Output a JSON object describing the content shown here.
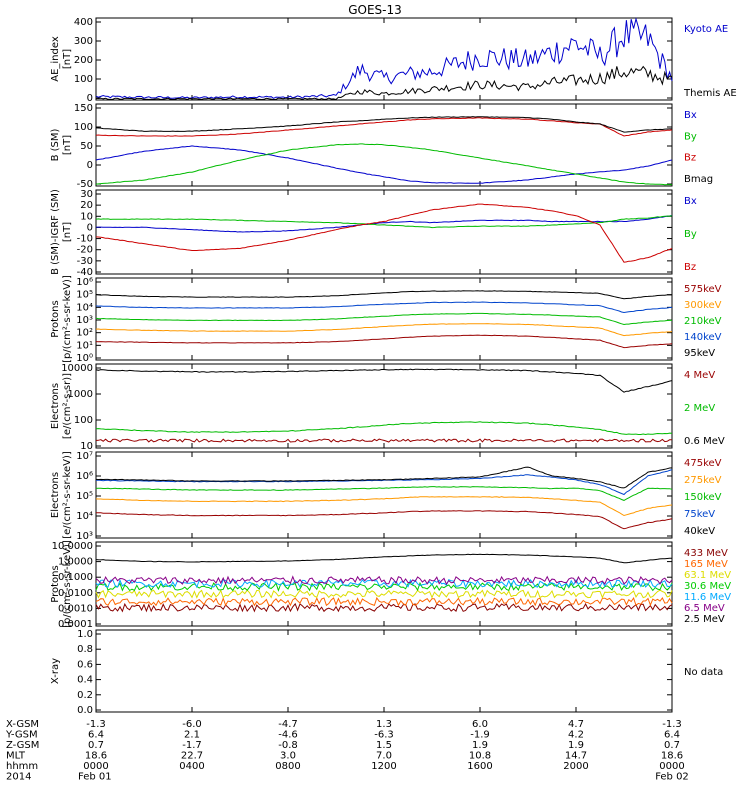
{
  "title": "GOES-13",
  "panels": [
    {
      "id": "ae",
      "ylabel": [
        "AE_index",
        "[nT]"
      ],
      "ticks": [
        "0",
        "100",
        "200",
        "300",
        "400"
      ],
      "legend": [
        {
          "label": "Kyoto AE",
          "color": "#0000cc"
        },
        {
          "label": "Themis AE",
          "color": "#000000"
        }
      ]
    },
    {
      "id": "bsm",
      "ylabel": [
        "B (SM)",
        "[nT]"
      ],
      "ticks": [
        "-50",
        "0",
        "50",
        "100",
        "150"
      ],
      "legend": [
        {
          "label": "Bx",
          "color": "#0000cc"
        },
        {
          "label": "By",
          "color": "#00bb00"
        },
        {
          "label": "Bz",
          "color": "#cc0000"
        },
        {
          "label": "Bmag",
          "color": "#000000"
        }
      ]
    },
    {
      "id": "bigrf",
      "ylabel": [
        "B (SM)-IGRF (SM)",
        "[nT]"
      ],
      "ticks": [
        "-40",
        "-30",
        "-20",
        "-10",
        "0",
        "10",
        "20",
        "30"
      ],
      "legend": [
        {
          "label": "Bx",
          "color": "#0000cc"
        },
        {
          "label": "By",
          "color": "#00bb00"
        },
        {
          "label": "Bz",
          "color": "#cc0000"
        }
      ]
    },
    {
      "id": "protons-kev",
      "ylabel": [
        "Protons",
        "[p/(cm²-s-sr-keV)]"
      ],
      "ticks": [
        "10⁰",
        "10¹",
        "10²",
        "10³",
        "10⁴",
        "10⁵",
        "10⁶"
      ],
      "legend": [
        {
          "label": "575keV",
          "color": "#990000"
        },
        {
          "label": "300keV",
          "color": "#ff9900"
        },
        {
          "label": "210keV",
          "color": "#00bb00"
        },
        {
          "label": "140keV",
          "color": "#0044cc"
        },
        {
          "label": "95keV",
          "color": "#000000"
        }
      ]
    },
    {
      "id": "electrons-mev",
      "ylabel": [
        "Electrons",
        "[e/(cm²-s-sr)]"
      ],
      "ticks": [
        "10",
        "100",
        "1000",
        "10000"
      ],
      "legend": [
        {
          "label": "4 MeV",
          "color": "#990000"
        },
        {
          "label": "2 MeV",
          "color": "#00bb00"
        },
        {
          "label": "0.6 MeV",
          "color": "#000000"
        }
      ]
    },
    {
      "id": "electrons-kev",
      "ylabel": [
        "Electrons",
        "[e/(cm²-s-sr-keV)]"
      ],
      "ticks": [
        "10³",
        "10⁴",
        "10⁵",
        "10⁶",
        "10⁷"
      ],
      "legend": [
        {
          "label": "475keV",
          "color": "#990000"
        },
        {
          "label": "275keV",
          "color": "#ff9900"
        },
        {
          "label": "150keV",
          "color": "#00bb00"
        },
        {
          "label": "75keV",
          "color": "#0044cc"
        },
        {
          "label": "40keV",
          "color": "#000000"
        }
      ]
    },
    {
      "id": "protons-mev",
      "ylabel": [
        "Protons",
        "[p/(cm²-s-sr-keV)]"
      ],
      "ticks": [
        "0.0001",
        "0.0010",
        "0.0100",
        "0.1000",
        "1.0000",
        "10.0000"
      ],
      "legend": [
        {
          "label": "433 MeV",
          "color": "#880000"
        },
        {
          "label": "165 MeV",
          "color": "#ff6600"
        },
        {
          "label": "63.1 MeV",
          "color": "#dddd00"
        },
        {
          "label": "30.6 MeV",
          "color": "#00cc00"
        },
        {
          "label": "11.6 MeV",
          "color": "#00aaff"
        },
        {
          "label": "6.5 MeV",
          "color": "#880088"
        },
        {
          "label": "2.5 MeV",
          "color": "#000000"
        }
      ]
    },
    {
      "id": "xray",
      "ylabel": [
        "X-ray"
      ],
      "ticks": [
        "0.0",
        "0.2",
        "0.4",
        "0.6",
        "0.8",
        "1.0"
      ],
      "legend": [
        {
          "label": "No data",
          "color": "#000000"
        }
      ]
    }
  ],
  "ephemeris": {
    "rows": [
      {
        "label": "X-GSM",
        "values": [
          "-1.3",
          "-6.0",
          "-4.7",
          "1.3",
          "6.0",
          "4.7",
          "-1.3"
        ]
      },
      {
        "label": "Y-GSM",
        "values": [
          "6.4",
          "2.1",
          "-4.6",
          "-6.3",
          "-1.9",
          "4.2",
          "6.4"
        ]
      },
      {
        "label": "Z-GSM",
        "values": [
          "0.7",
          "-1.7",
          "-0.8",
          "1.5",
          "1.9",
          "1.9",
          "0.7"
        ]
      },
      {
        "label": "MLT",
        "values": [
          "18.6",
          "22.7",
          "3.0",
          "7.0",
          "10.8",
          "14.7",
          "18.6"
        ]
      },
      {
        "label": "hhmm",
        "values": [
          "0000",
          "0400",
          "0800",
          "1200",
          "1600",
          "2000",
          "0000"
        ]
      },
      {
        "label": "2014",
        "values": [
          "Feb 01",
          "",
          "",
          "",
          "",
          "",
          "Feb 02"
        ]
      }
    ]
  },
  "chart_data": {
    "type": "line",
    "title": "GOES-13",
    "x_unit": "hours since 2014-02-01 00:00 UT",
    "x": [
      0,
      2,
      4,
      6,
      8,
      10,
      11,
      12,
      13,
      14,
      16,
      18,
      19,
      20,
      21,
      22,
      23,
      24
    ],
    "xlim": [
      0,
      24
    ],
    "panels": [
      {
        "name": "AE_index",
        "ylim": [
          0,
          400
        ],
        "series": [
          {
            "name": "Kyoto AE",
            "values": [
              15,
              12,
              10,
              14,
              12,
              20,
              140,
              100,
              120,
              130,
              200,
              180,
              220,
              260,
              200,
              300,
              280,
              100
            ]
          },
          {
            "name": "Themis AE",
            "values": [
              5,
              5,
              5,
              5,
              5,
              5,
              40,
              30,
              40,
              50,
              70,
              60,
              80,
              90,
              100,
              130,
              120,
              90
            ]
          }
        ]
      },
      {
        "name": "B (SM)",
        "ylim": [
          -55,
          150
        ],
        "series": [
          {
            "name": "Bx",
            "values": [
              10,
              32,
              45,
              35,
              15,
              -10,
              -22,
              -32,
              -42,
              -47,
              -48,
              -40,
              -32,
              -25,
              -20,
              -15,
              -5,
              10
            ]
          },
          {
            "name": "By",
            "values": [
              -50,
              -40,
              -20,
              10,
              35,
              48,
              50,
              48,
              42,
              35,
              15,
              -5,
              -15,
              -25,
              -35,
              -45,
              -50,
              -52
            ]
          },
          {
            "name": "Bz",
            "values": [
              72,
              70,
              70,
              75,
              85,
              95,
              100,
              105,
              110,
              113,
              115,
              112,
              108,
              103,
              100,
              70,
              80,
              85
            ]
          },
          {
            "name": "Bmag",
            "values": [
              90,
              82,
              82,
              88,
              95,
              105,
              108,
              112,
              115,
              117,
              118,
              116,
              112,
              105,
              100,
              80,
              85,
              88
            ]
          }
        ]
      },
      {
        "name": "B (SM)-IGRF (SM)",
        "ylim": [
          -42,
          30
        ],
        "series": [
          {
            "name": "Bx",
            "values": [
              -2,
              -2,
              -4,
              -6,
              -5,
              -2,
              0,
              2,
              3,
              2,
              4,
              4,
              3,
              3,
              3,
              3,
              5,
              8
            ]
          },
          {
            "name": "By",
            "values": [
              5,
              5,
              5,
              4,
              3,
              2,
              1,
              0,
              -1,
              -2,
              -1,
              -1,
              0,
              1,
              2,
              5,
              6,
              8
            ]
          },
          {
            "name": "Bz",
            "values": [
              -10,
              -16,
              -22,
              -20,
              -13,
              -4,
              0,
              3,
              8,
              13,
              18,
              15,
              12,
              8,
              0,
              -32,
              -28,
              -20
            ]
          }
        ]
      },
      {
        "name": "Protons (keV)",
        "scale": "log",
        "ylim": [
          1,
          1000000
        ],
        "series": [
          {
            "name": "575keV",
            "values": [
              22,
              20,
              18,
              18,
              18,
              22,
              28,
              35,
              45,
              55,
              65,
              55,
              45,
              35,
              28,
              8,
              12,
              15
            ]
          },
          {
            "name": "300keV",
            "values": [
              180,
              150,
              130,
              130,
              130,
              170,
              220,
              280,
              350,
              420,
              450,
              400,
              330,
              270,
              220,
              60,
              90,
              120
            ]
          },
          {
            "name": "210keV",
            "values": [
              1100,
              900,
              800,
              800,
              800,
              1000,
              1300,
              1600,
              2000,
              2300,
              2500,
              2200,
              1900,
              1600,
              1400,
              400,
              600,
              800
            ]
          },
          {
            "name": "140keV",
            "values": [
              9000,
              7000,
              6500,
              6500,
              6500,
              8000,
              10000,
              12000,
              14000,
              16000,
              17000,
              15000,
              13000,
              11000,
              9500,
              3000,
              5000,
              7000
            ]
          },
          {
            "name": "95keV",
            "values": [
              60000,
              45000,
              40000,
              40000,
              40000,
              50000,
              65000,
              80000,
              100000,
              110000,
              115000,
              105000,
              95000,
              85000,
              75000,
              30000,
              45000,
              60000
            ]
          }
        ]
      },
      {
        "name": "Electrons (MeV)",
        "scale": "log",
        "ylim": [
          5,
          12000
        ],
        "series": [
          {
            "name": "4 MeV",
            "values": [
              10,
              10,
              10,
              10,
              10,
              10,
              10,
              10,
              10,
              10,
              10,
              10,
              10,
              10,
              10,
              10,
              10,
              10
            ]
          },
          {
            "name": "2 MeV",
            "values": [
              30,
              25,
              22,
              22,
              24,
              30,
              35,
              42,
              48,
              52,
              55,
              50,
              42,
              35,
              28,
              18,
              18,
              20
            ]
          },
          {
            "name": "0.6 MeV",
            "values": [
              7000,
              6200,
              5800,
              5800,
              6000,
              6500,
              6800,
              7000,
              7200,
              7200,
              7000,
              6500,
              5800,
              5000,
              4200,
              900,
              1500,
              2500
            ]
          }
        ]
      },
      {
        "name": "Electrons (keV)",
        "scale": "log",
        "ylim": [
          700,
          12000000
        ],
        "series": [
          {
            "name": "475keV",
            "values": [
              12000,
              10000,
              9000,
              9000,
              9000,
              10000,
              11000,
              12000,
              14000,
              15000,
              15000,
              14000,
              12000,
              10000,
              8000,
              2000,
              4000,
              6000
            ]
          },
          {
            "name": "275keV",
            "values": [
              60000,
              50000,
              45000,
              45000,
              45000,
              50000,
              55000,
              60000,
              70000,
              75000,
              75000,
              70000,
              60000,
              50000,
              40000,
              9000,
              20000,
              30000
            ]
          },
          {
            "name": "150keV",
            "values": [
              200000,
              180000,
              160000,
              160000,
              160000,
              180000,
              190000,
              200000,
              220000,
              230000,
              230000,
              210000,
              190000,
              200000,
              150000,
              50000,
              200000,
              180000
            ]
          },
          {
            "name": "75keV",
            "values": [
              480000,
              450000,
              420000,
              420000,
              420000,
              450000,
              460000,
              480000,
              500000,
              520000,
              600000,
              900000,
              700000,
              500000,
              300000,
              100000,
              800000,
              1600000
            ]
          },
          {
            "name": "40keV",
            "values": [
              550000,
              500000,
              450000,
              450000,
              450000,
              480000,
              500000,
              520000,
              550000,
              600000,
              700000,
              2200000,
              800000,
              600000,
              400000,
              200000,
              1200000,
              2000000
            ]
          }
        ]
      },
      {
        "name": "Protons (MeV)",
        "scale": "log",
        "ylim": [
          7e-05,
          30
        ],
        "series": [
          {
            "name": "433 MeV",
            "values": [
              0.0012,
              0.0012,
              0.0012,
              0.0012,
              0.0012,
              0.0012,
              0.0012,
              0.0012,
              0.0012,
              0.0012,
              0.0012,
              0.0012,
              0.0012,
              0.0012,
              0.0012,
              0.0012,
              0.0012,
              0.0012
            ]
          },
          {
            "name": "165 MeV",
            "values": [
              0.003,
              0.003,
              0.003,
              0.003,
              0.003,
              0.003,
              0.003,
              0.003,
              0.003,
              0.003,
              0.003,
              0.003,
              0.003,
              0.003,
              0.003,
              0.003,
              0.003,
              0.003
            ]
          },
          {
            "name": "63.1 MeV",
            "values": [
              0.01,
              0.01,
              0.01,
              0.01,
              0.01,
              0.01,
              0.01,
              0.01,
              0.01,
              0.01,
              0.01,
              0.01,
              0.01,
              0.01,
              0.01,
              0.01,
              0.01,
              0.01
            ]
          },
          {
            "name": "30.6 MeV",
            "values": [
              0.03,
              0.03,
              0.03,
              0.03,
              0.03,
              0.03,
              0.03,
              0.03,
              0.03,
              0.03,
              0.03,
              0.03,
              0.03,
              0.03,
              0.03,
              0.03,
              0.03,
              0.03
            ]
          },
          {
            "name": "11.6 MeV",
            "values": [
              0.05,
              0.05,
              0.05,
              0.05,
              0.05,
              0.05,
              0.05,
              0.05,
              0.05,
              0.05,
              0.05,
              0.05,
              0.05,
              0.05,
              0.05,
              0.05,
              0.05,
              0.05
            ]
          },
          {
            "name": "6.5 MeV",
            "values": [
              0.08,
              0.08,
              0.08,
              0.08,
              0.08,
              0.08,
              0.08,
              0.08,
              0.08,
              0.08,
              0.08,
              0.08,
              0.08,
              0.08,
              0.08,
              0.08,
              0.08,
              0.08
            ]
          },
          {
            "name": "2.5 MeV",
            "values": [
              2.0,
              1.5,
              1.4,
              1.5,
              1.6,
              2.0,
              2.5,
              3.0,
              3.5,
              4.0,
              4.5,
              4.0,
              3.5,
              3.0,
              2.5,
              1.2,
              1.8,
              2.5
            ]
          }
        ]
      },
      {
        "name": "X-ray",
        "ylim": [
          0,
          1
        ],
        "series": []
      }
    ]
  }
}
